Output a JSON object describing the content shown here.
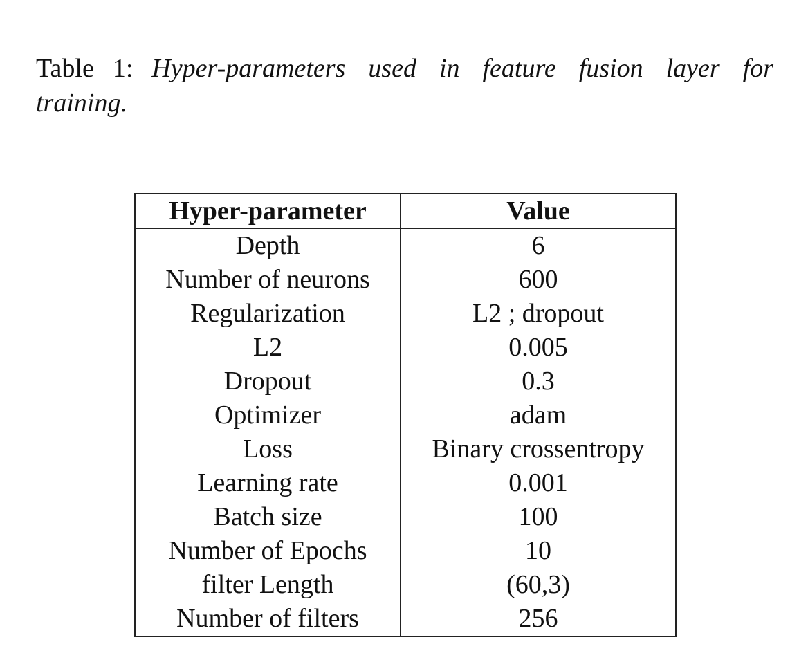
{
  "caption": {
    "label": "Table 1:",
    "text": "Hyper-parameters used in feature fusion layer for training."
  },
  "table": {
    "headers": [
      "Hyper-parameter",
      "Value"
    ],
    "rows": [
      [
        "Depth",
        "6"
      ],
      [
        "Number of neurons",
        "600"
      ],
      [
        "Regularization",
        "L2 ; dropout"
      ],
      [
        "L2",
        "0.005"
      ],
      [
        "Dropout",
        "0.3"
      ],
      [
        "Optimizer",
        "adam"
      ],
      [
        "Loss",
        "Binary crossentropy"
      ],
      [
        "Learning rate",
        "0.001"
      ],
      [
        "Batch size",
        "100"
      ],
      [
        "Number of Epochs",
        "10"
      ],
      [
        "filter Length",
        "(60,3)"
      ],
      [
        "Number of filters",
        "256"
      ]
    ]
  }
}
